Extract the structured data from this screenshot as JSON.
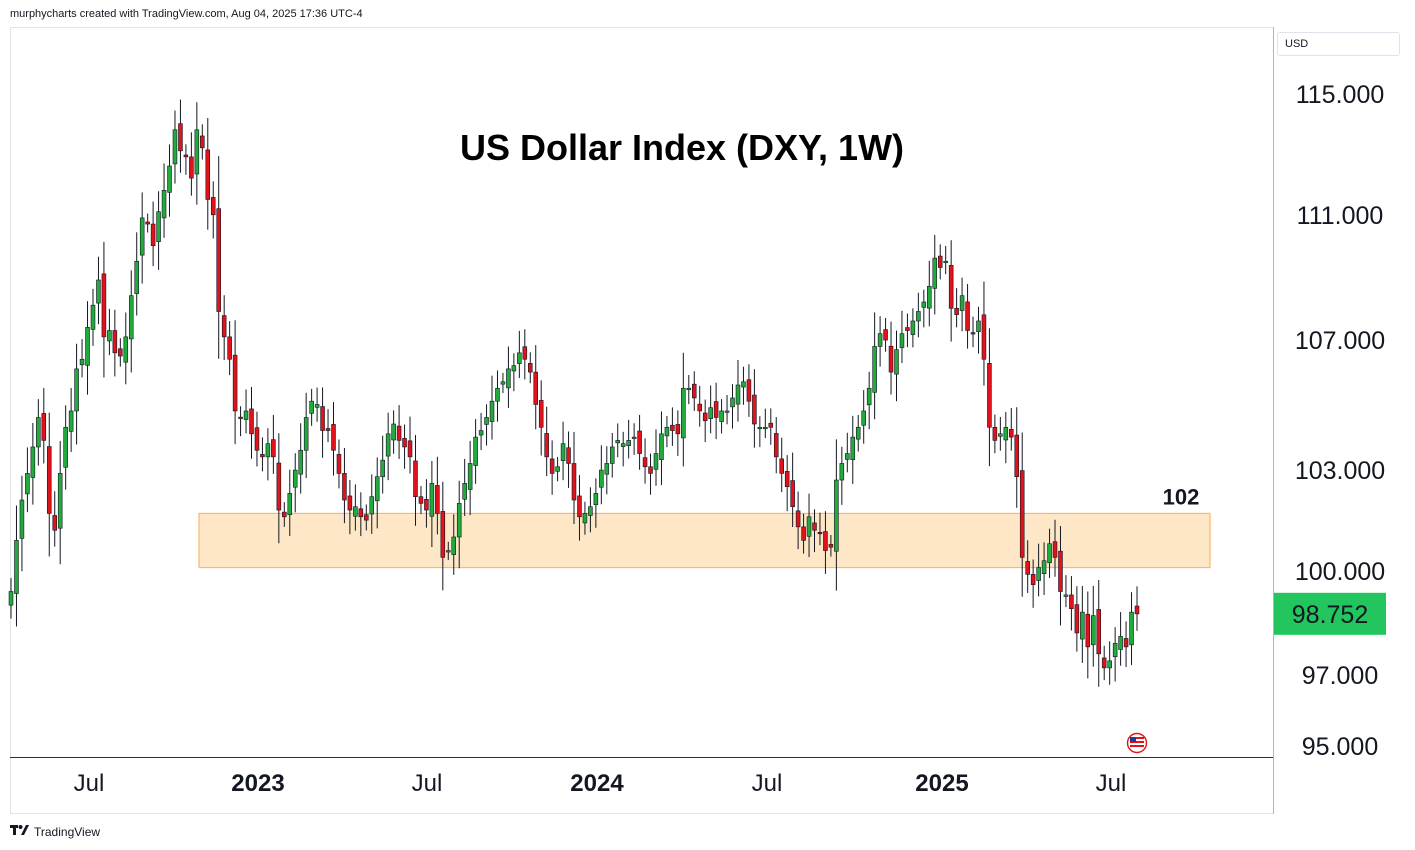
{
  "header": {
    "attribution": "murphycharts created with TradingView.com, Aug 04, 2025 17:36 UTC-4"
  },
  "footer": {
    "brand": "TradingView",
    "logo_icon": "tradingview-logo-icon"
  },
  "price_axis": {
    "currency_label": "USD"
  },
  "colors": {
    "up": "#22ab3c",
    "down": "#e0121b",
    "zone_fill": "#fde7c7",
    "zone_stroke": "#f8b96b",
    "title": "#ff0000",
    "last_price_bg": "#22c55e"
  },
  "chart_data": {
    "type": "candlestick",
    "title": "US Dollar Index (DXY, 1W)",
    "price_scale": "log",
    "y_tick_labels": [
      "115.000",
      "111.000",
      "107.000",
      "103.000",
      "100.000",
      "97.000",
      "95.000"
    ],
    "y_ticks": [
      115,
      111,
      107,
      103,
      100,
      97,
      95
    ],
    "x_tick_labels": [
      {
        "label": "Jul",
        "bold": false
      },
      {
        "label": "2023",
        "bold": true
      },
      {
        "label": "Jul",
        "bold": false
      },
      {
        "label": "2024",
        "bold": true
      },
      {
        "label": "Jul",
        "bold": false
      },
      {
        "label": "2025",
        "bold": true
      },
      {
        "label": "Jul",
        "bold": false
      }
    ],
    "last_price": "98.752",
    "annotations": [
      {
        "type": "support-zone",
        "from": 100.1,
        "to": 101.7,
        "label": "102"
      }
    ],
    "candle_closes": [
      99.4,
      100.9,
      102.1,
      102.9,
      103.7,
      104.6,
      103.9,
      101.7,
      101.2,
      102.9,
      104.3,
      104.8,
      106.1,
      106.4,
      107.4,
      108.1,
      108.9,
      107.1,
      107.3,
      106.6,
      106.5,
      107.1,
      108.4,
      109.5,
      110.9,
      110.7,
      110.0,
      111.1,
      111.8,
      112.6,
      113.8,
      113.1,
      112.9,
      112.2,
      113.8,
      113.2,
      111.5,
      111.0,
      107.9,
      107.1,
      106.4,
      104.8,
      104.6,
      104.8,
      104.1,
      103.6,
      103.4,
      103.8,
      103.4,
      101.8,
      101.6,
      102.3,
      103.0,
      103.6,
      104.6,
      105.1,
      105.0,
      104.2,
      104.2,
      103.6,
      102.9,
      102.1,
      101.8,
      101.9,
      101.6,
      101.5,
      102.2,
      102.8,
      103.3,
      104.1,
      104.4,
      103.9,
      103.7,
      103.4,
      102.2,
      102.0,
      101.8,
      102.6,
      101.7,
      100.4,
      100.6,
      101.0,
      102.0,
      102.6,
      103.2,
      104.0,
      104.2,
      104.6,
      105.1,
      105.5,
      105.7,
      106.1,
      106.2,
      106.6,
      106.4,
      106.0,
      105.0,
      104.3,
      103.4,
      102.9,
      103.1,
      103.8,
      103.2,
      102.1,
      101.6,
      101.7,
      101.9,
      102.3,
      103.0,
      103.2,
      103.7,
      103.9,
      103.8,
      103.9,
      104.0,
      103.5,
      103.1,
      102.9,
      103.5,
      104.1,
      104.3,
      104.2,
      104.1,
      105.5,
      105.5,
      105.2,
      104.8,
      104.5,
      104.9,
      104.6,
      104.8,
      104.8,
      105.2,
      105.6,
      105.7,
      105.1,
      104.4,
      104.3,
      104.3,
      104.3,
      103.4,
      102.9,
      102.5,
      101.9,
      101.3,
      100.9,
      101.6,
      101.2,
      101.1,
      100.6,
      100.7,
      102.7,
      103.2,
      103.5,
      104.0,
      104.3,
      104.8,
      105.5,
      106.8,
      107.2,
      107.0,
      106.0,
      106.7,
      107.2,
      107.3,
      107.6,
      107.9,
      108.2,
      108.7,
      109.6,
      109.3,
      109.5,
      108.0,
      107.8,
      108.4,
      107.3,
      107.2,
      107.6,
      106.4,
      104.3,
      103.9,
      104.1,
      104.3,
      104.0,
      102.8,
      100.4,
      99.9,
      99.6,
      100.1,
      100.3,
      100.8,
      100.4,
      99.4,
      99.3,
      98.9,
      98.2,
      98.8,
      97.8,
      98.7,
      97.6,
      97.2,
      97.4,
      97.9,
      98.1,
      97.8,
      98.8,
      98.75
    ]
  }
}
